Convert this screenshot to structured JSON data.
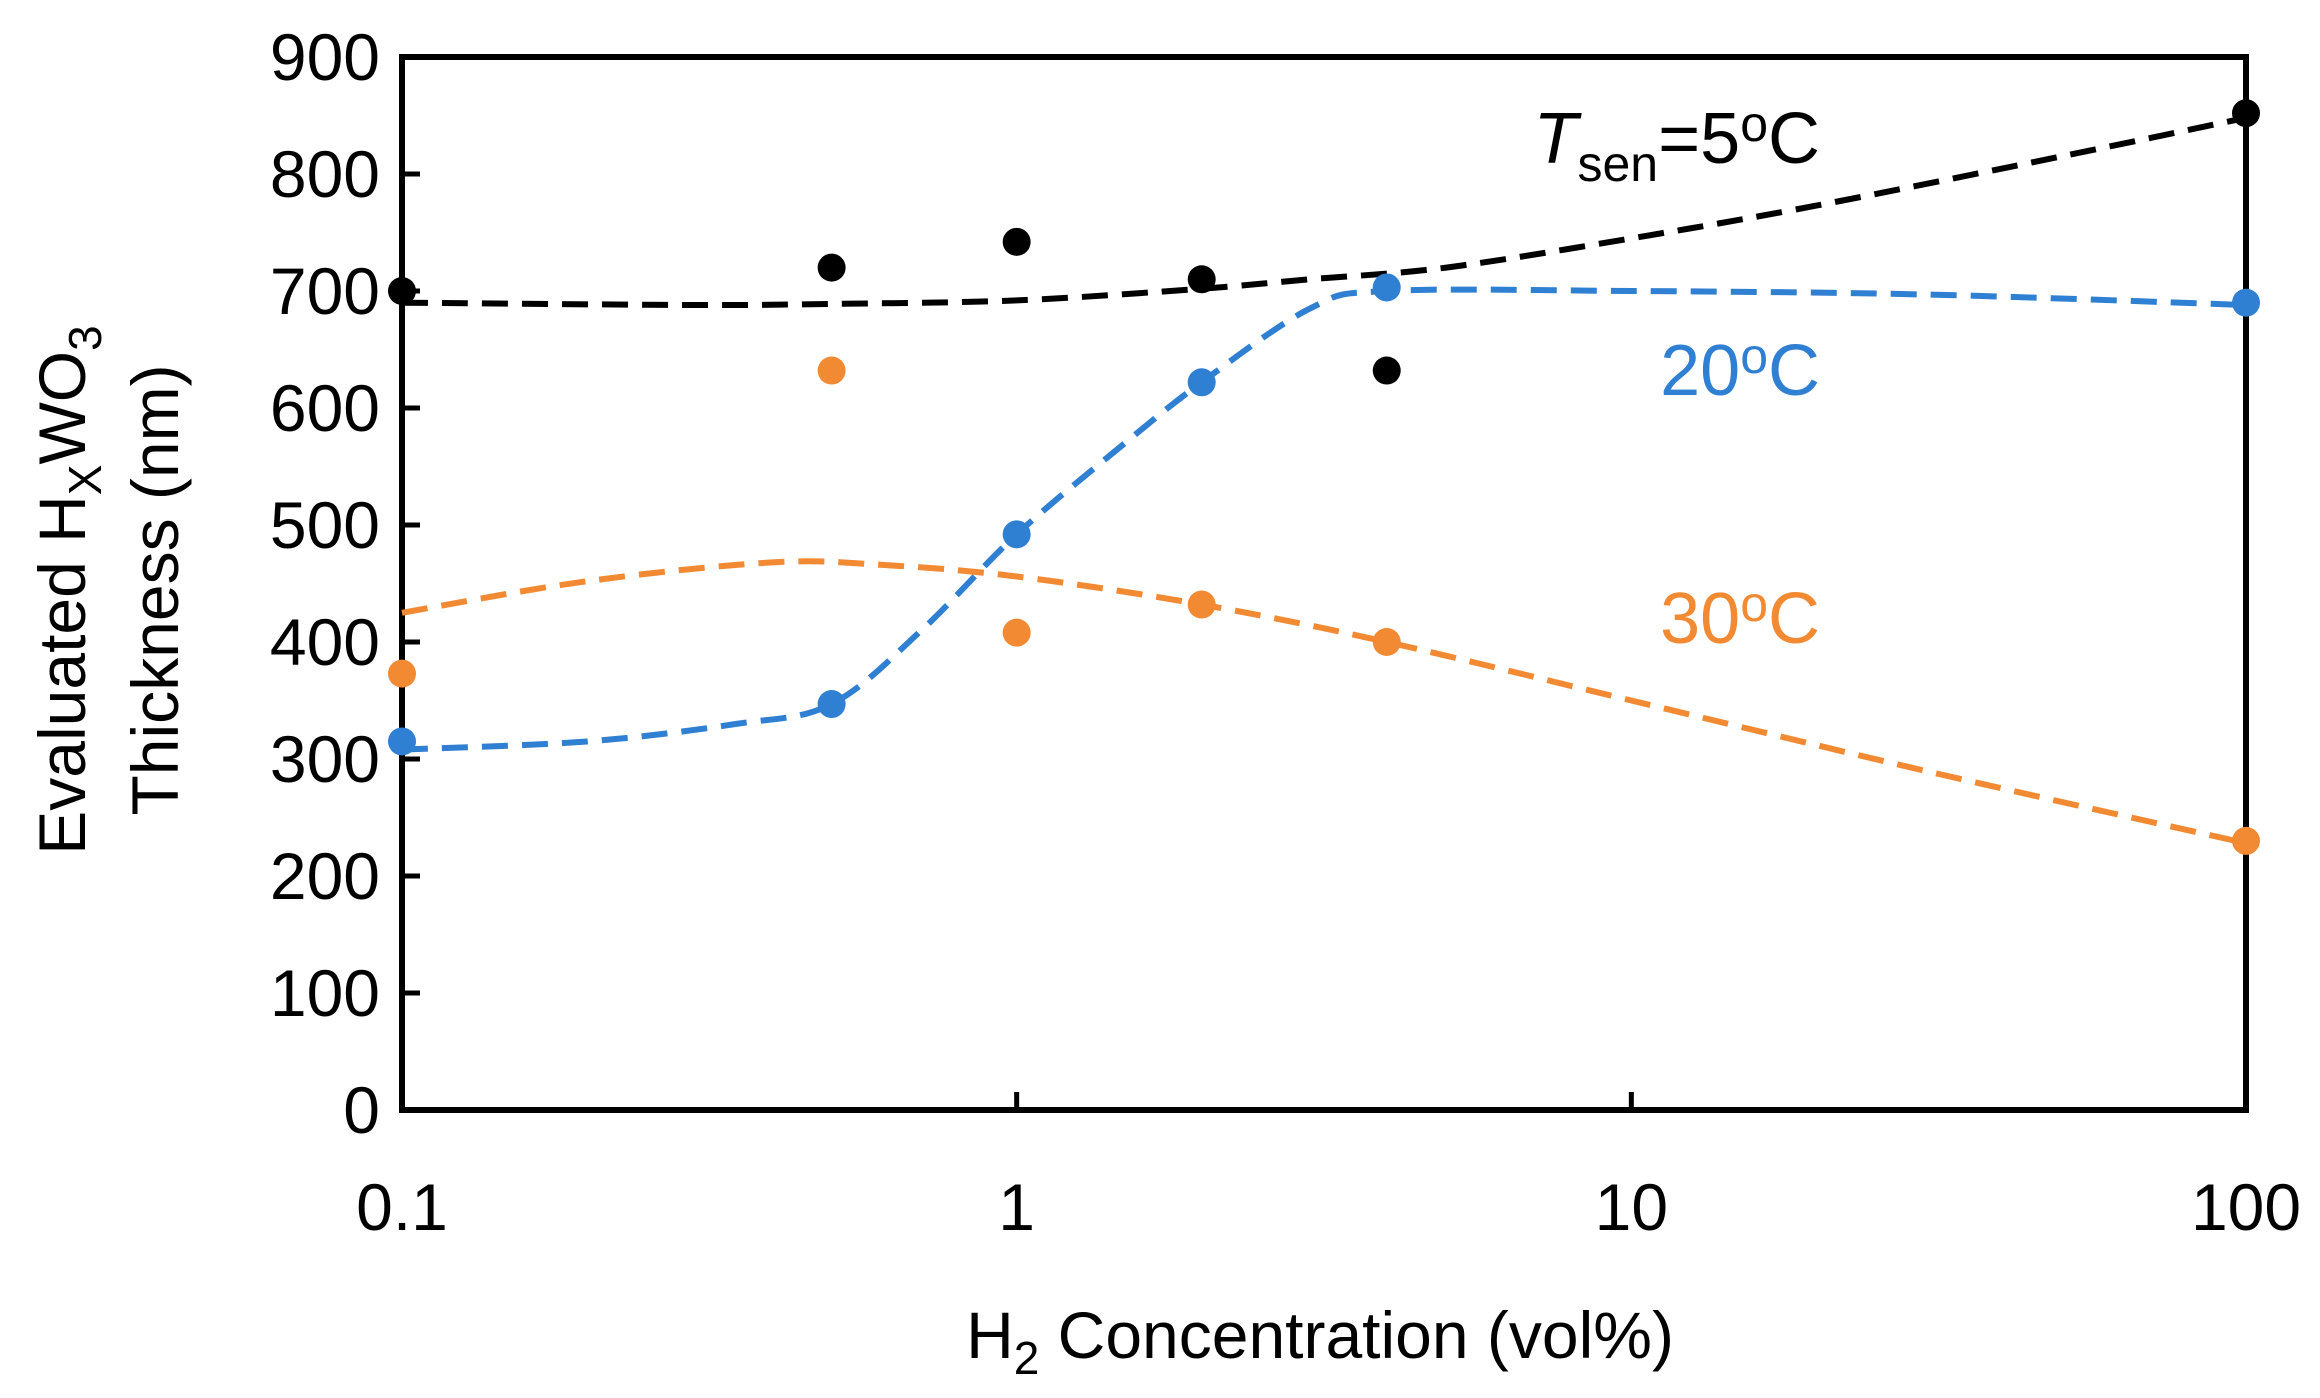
{
  "chart_data": {
    "type": "scatter",
    "title": "",
    "x_scale": "log",
    "xlim": [
      0.1,
      100
    ],
    "ylim": [
      0,
      900
    ],
    "xticks": [
      "0.1",
      "1",
      "10",
      "100"
    ],
    "yticks": [
      "0",
      "100",
      "200",
      "300",
      "400",
      "500",
      "600",
      "700",
      "800",
      "900"
    ],
    "xlabel": {
      "main": "H",
      "sub": "2",
      "rest": " Concentration (vol%)"
    },
    "ylabel": {
      "line1": {
        "main": "Evaluated H",
        "sub": "X",
        "mid": "WO",
        "sub2": "3"
      },
      "line2": "Thickness (nm)"
    },
    "grid": false,
    "series": [
      {
        "name": "5oC",
        "label": {
          "var": "T",
          "sub": "sen",
          "eq": "=5",
          "sup": "o",
          "unit": "C"
        },
        "color": "#000000",
        "points": [
          [
            0.1,
            700
          ],
          [
            0.5,
            720
          ],
          [
            1,
            742
          ],
          [
            2,
            710
          ],
          [
            4,
            632
          ],
          [
            100,
            852
          ]
        ],
        "fit": [
          [
            0.1,
            690
          ],
          [
            0.3,
            688
          ],
          [
            0.5,
            689
          ],
          [
            1,
            692
          ],
          [
            2,
            702
          ],
          [
            3,
            710
          ],
          [
            5,
            720
          ],
          [
            10,
            745
          ],
          [
            20,
            773
          ],
          [
            50,
            815
          ],
          [
            100,
            848
          ]
        ]
      },
      {
        "name": "20oC",
        "label": {
          "var": "",
          "sub": "",
          "eq": "20",
          "sup": "o",
          "unit": "C"
        },
        "color": "#2f7fd2",
        "points": [
          [
            0.1,
            315
          ],
          [
            0.5,
            347
          ],
          [
            1,
            492
          ],
          [
            2,
            622
          ],
          [
            4,
            703
          ],
          [
            100,
            690
          ]
        ],
        "fit": [
          [
            0.1,
            308
          ],
          [
            0.2,
            315
          ],
          [
            0.35,
            330
          ],
          [
            0.5,
            347
          ],
          [
            0.7,
            410
          ],
          [
            1,
            492
          ],
          [
            1.5,
            570
          ],
          [
            2,
            622
          ],
          [
            3,
            685
          ],
          [
            4,
            700
          ],
          [
            10,
            700
          ],
          [
            30,
            697
          ],
          [
            100,
            688
          ]
        ]
      },
      {
        "name": "30oC",
        "label": {
          "var": "",
          "sub": "",
          "eq": "30",
          "sup": "o",
          "unit": "C"
        },
        "color": "#f28a33",
        "points": [
          [
            0.1,
            373
          ],
          [
            0.5,
            632
          ],
          [
            1,
            408
          ],
          [
            2,
            432
          ],
          [
            4,
            400
          ],
          [
            100,
            230
          ]
        ],
        "fit": [
          [
            0.1,
            425
          ],
          [
            0.2,
            452
          ],
          [
            0.4,
            468
          ],
          [
            0.6,
            466
          ],
          [
            1,
            456
          ],
          [
            2,
            432
          ],
          [
            4,
            400
          ],
          [
            10,
            350
          ],
          [
            30,
            290
          ],
          [
            100,
            228
          ]
        ]
      }
    ]
  }
}
